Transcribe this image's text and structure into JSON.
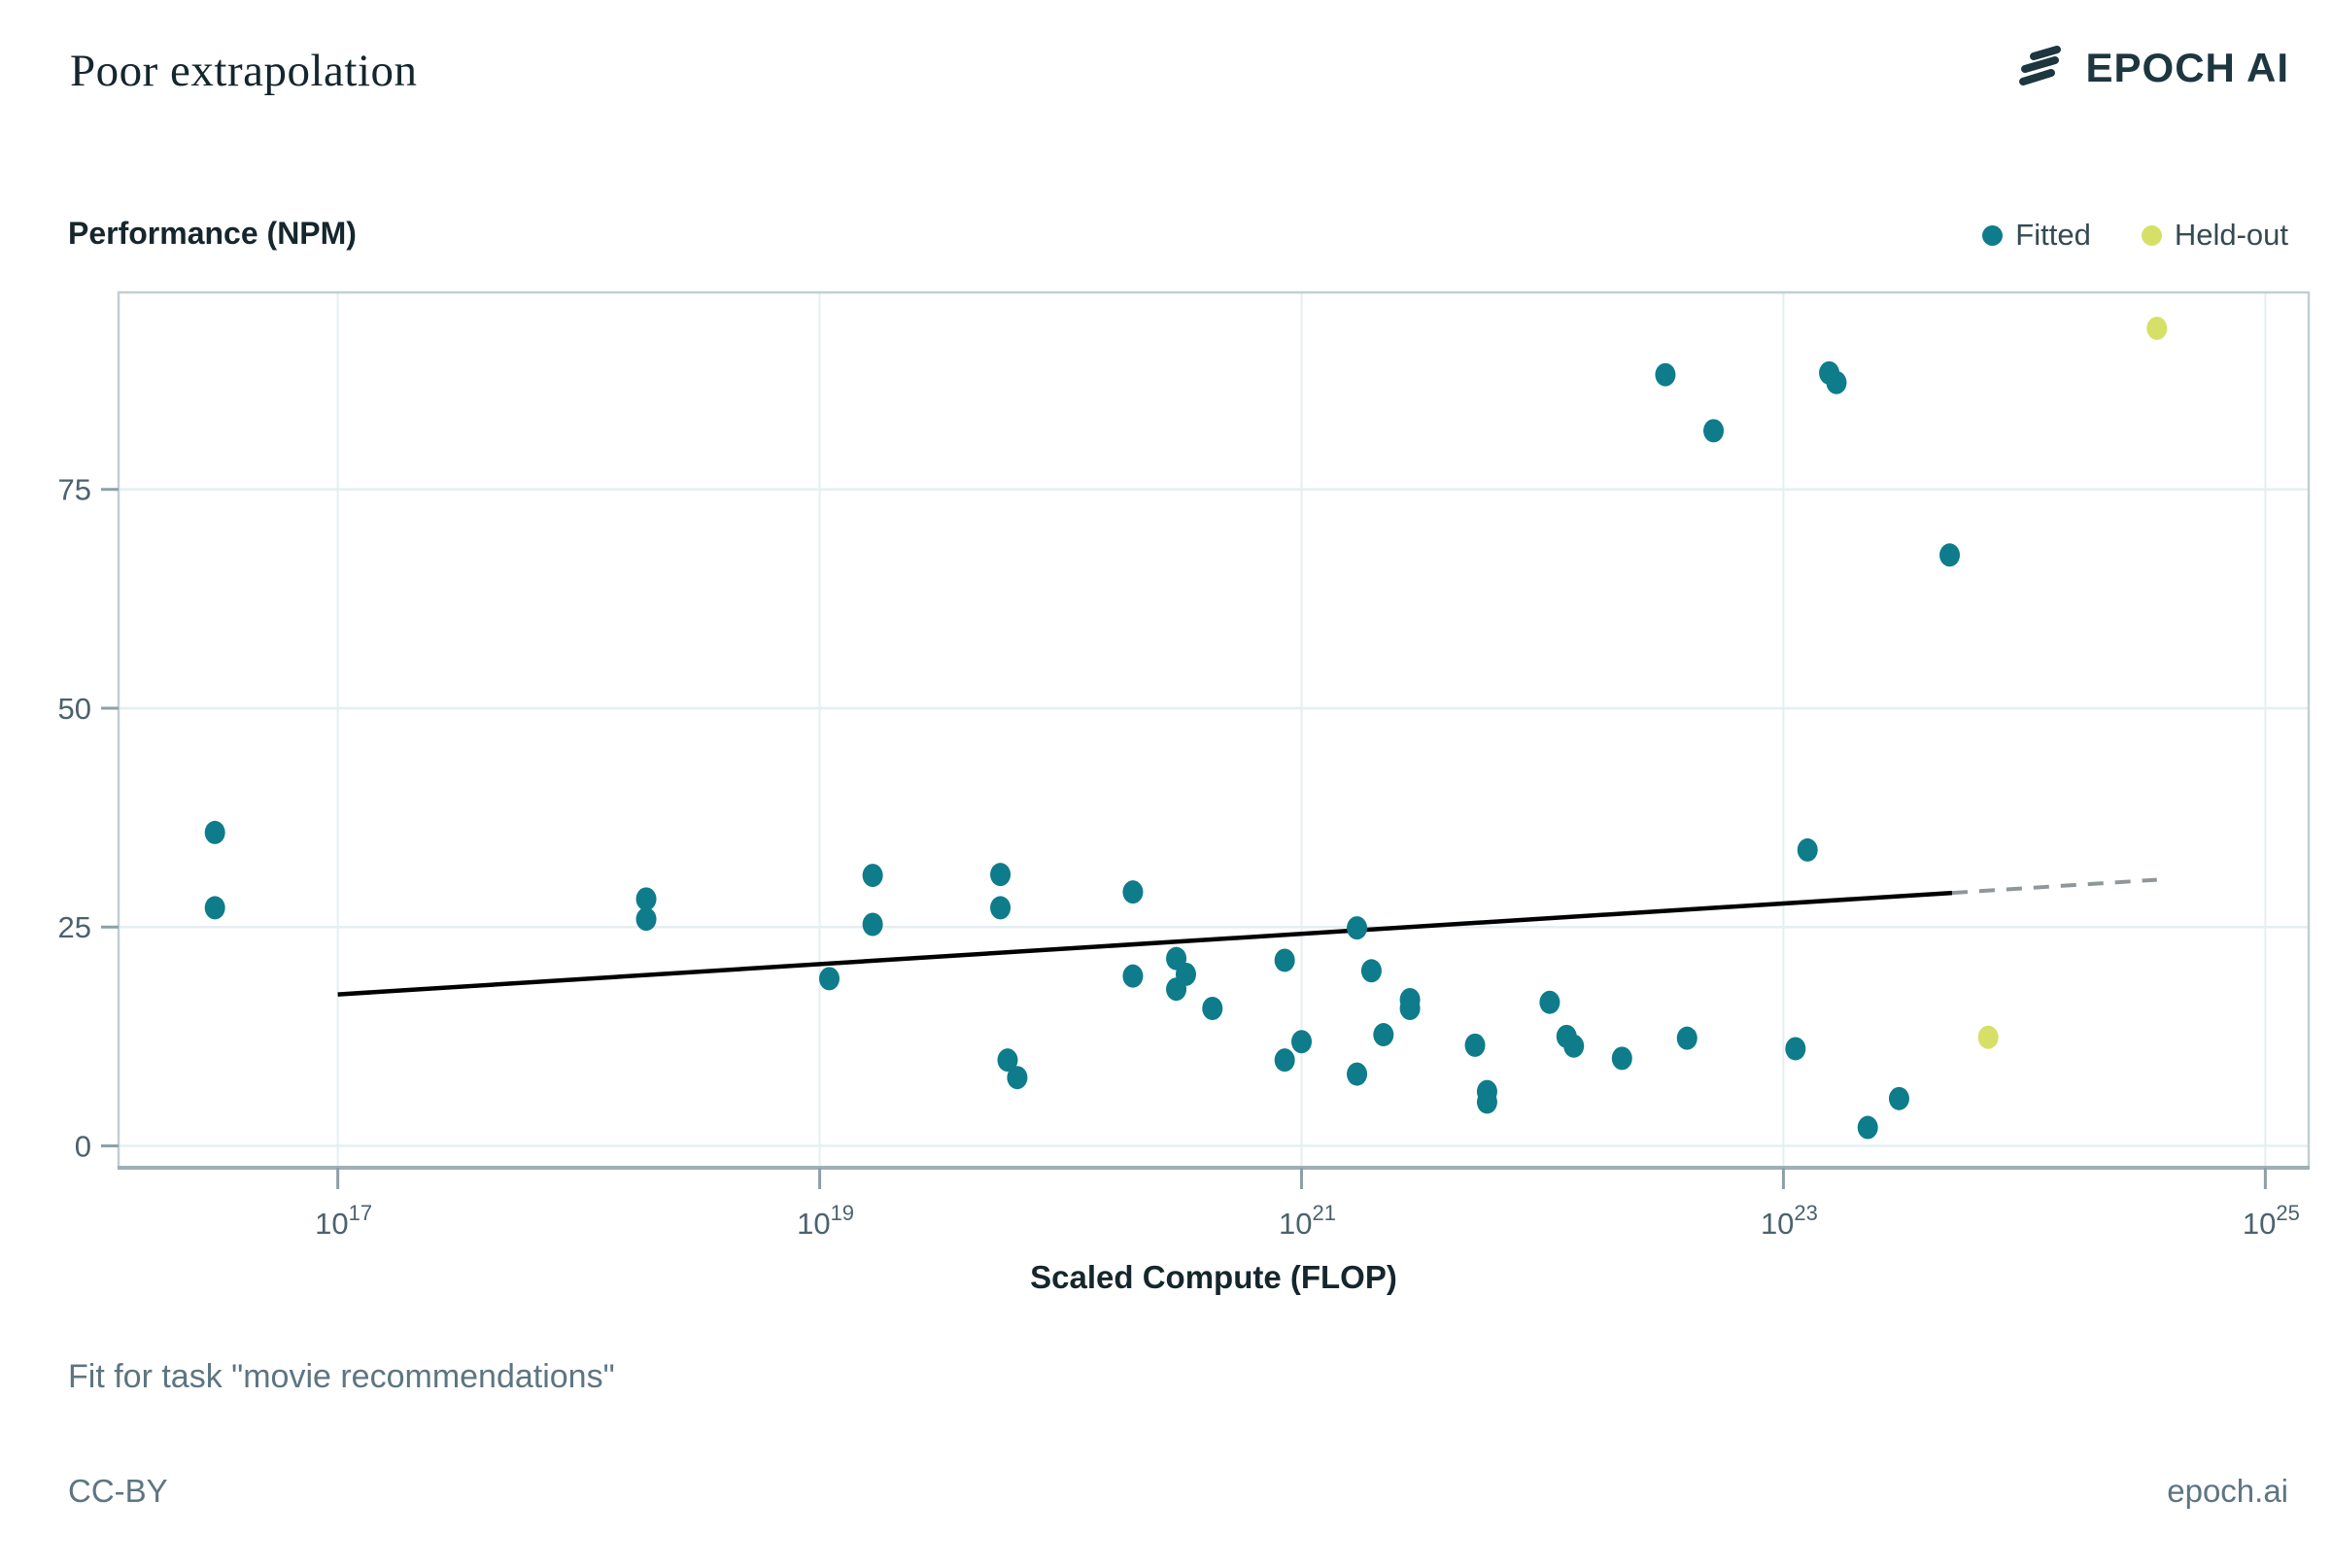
{
  "header": {
    "title": "Poor extrapolation",
    "brand": "EPOCH AI"
  },
  "footer": {
    "fit_note": "Fit for task \"movie recommendations\"",
    "license": "CC-BY",
    "site": "epoch.ai"
  },
  "colors": {
    "fitted": "#0e7c8a",
    "held_out": "#d6e067",
    "fit_line": "#000000",
    "extrapolation": "#8f979a",
    "grid": "#e6eef0",
    "border": "#c3ced3",
    "axis_bottom": "#9fafb5",
    "tick": "#8da0a7",
    "tick_label": "#4b626d",
    "logo": "#1d3640"
  },
  "chart_data": {
    "type": "scatter",
    "title": "Poor extrapolation",
    "xlabel": "Scaled Compute (FLOP)",
    "ylabel": "Performance (NPM)",
    "x_scale": "log10",
    "x_tick_base": "10",
    "x_tick_exponents": [
      17,
      19,
      21,
      23,
      25
    ],
    "x_log_range": [
      16.09,
      25.18
    ],
    "y_ticks": [
      0,
      25,
      50,
      75
    ],
    "y_range": [
      -2.5,
      97.5
    ],
    "grid": true,
    "legend_position": "top-right",
    "series": [
      {
        "name": "Fitted",
        "color": "#0e7c8a",
        "points": [
          [
            16.49,
            35.8
          ],
          [
            16.49,
            27.2
          ],
          [
            18.28,
            28.2
          ],
          [
            18.28,
            25.9
          ],
          [
            19.04,
            19.1
          ],
          [
            19.22,
            30.9
          ],
          [
            19.22,
            25.3
          ],
          [
            19.75,
            31.0
          ],
          [
            19.75,
            27.2
          ],
          [
            19.78,
            9.8
          ],
          [
            19.82,
            7.8
          ],
          [
            20.3,
            29.0
          ],
          [
            20.3,
            19.4
          ],
          [
            20.48,
            21.4
          ],
          [
            20.48,
            17.9
          ],
          [
            20.52,
            19.6
          ],
          [
            20.63,
            15.7
          ],
          [
            20.93,
            21.2
          ],
          [
            20.93,
            9.8
          ],
          [
            21.0,
            11.9
          ],
          [
            21.23,
            24.9
          ],
          [
            21.23,
            8.2
          ],
          [
            21.29,
            20.0
          ],
          [
            21.34,
            12.7
          ],
          [
            21.45,
            16.7
          ],
          [
            21.45,
            15.7
          ],
          [
            21.72,
            11.5
          ],
          [
            21.77,
            6.2
          ],
          [
            21.77,
            5.0
          ],
          [
            22.03,
            16.4
          ],
          [
            22.1,
            12.5
          ],
          [
            22.13,
            11.4
          ],
          [
            22.33,
            10.0
          ],
          [
            22.51,
            88.1
          ],
          [
            22.6,
            12.3
          ],
          [
            22.71,
            81.7
          ],
          [
            23.05,
            11.1
          ],
          [
            23.1,
            33.8
          ],
          [
            23.19,
            88.3
          ],
          [
            23.22,
            87.2
          ],
          [
            23.35,
            2.1
          ],
          [
            23.48,
            5.4
          ],
          [
            23.69,
            67.5
          ]
        ]
      },
      {
        "name": "Held-out",
        "color": "#d6e067",
        "points": [
          [
            23.85,
            12.4
          ],
          [
            24.55,
            93.4
          ]
        ]
      }
    ],
    "fit_line": {
      "solid": [
        [
          17.0,
          17.3
        ],
        [
          23.7,
          28.9
        ]
      ],
      "dashed": [
        [
          23.7,
          28.9
        ],
        [
          24.55,
          30.4
        ]
      ]
    }
  }
}
